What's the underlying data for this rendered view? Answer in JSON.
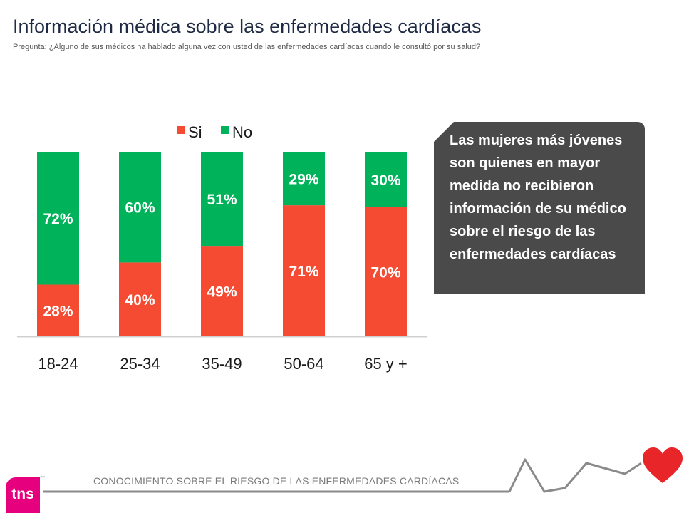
{
  "header": {
    "title": "Información médica sobre las enfermedades cardíacas",
    "subtitle": "Pregunta: ¿Alguno de sus médicos ha hablado alguna vez con usted de las enfermedades cardíacas cuando le consultó por su salud?"
  },
  "chart_data": {
    "type": "bar",
    "stacked": true,
    "categories": [
      "18-24",
      "25-34",
      "35-49",
      "50-64",
      "65 y +"
    ],
    "series": [
      {
        "name": "Si",
        "color": "#f44b32",
        "values": [
          28,
          40,
          49,
          71,
          70
        ],
        "labels": [
          "28%",
          "40%",
          "49%",
          "71%",
          "70%"
        ]
      },
      {
        "name": "No",
        "color": "#00b35a",
        "values": [
          72,
          60,
          51,
          29,
          30
        ],
        "labels": [
          "72%",
          "60%",
          "51%",
          "29%",
          "30%"
        ]
      }
    ],
    "ylim": [
      0,
      100
    ],
    "grid": false,
    "legend": "top"
  },
  "callout": {
    "text": "Las mujeres más jóvenes son quienes en mayor medida no recibieron información de su médico sobre el riesgo de las enfermedades cardíacas"
  },
  "footer": {
    "text": "CONOCIMIENTO SOBRE EL RIESGO DE LAS ENFERMEDADES CARDÍACAS",
    "logo": "tns",
    "logo_tm": "™",
    "heart_icon": "heart-icon",
    "heart_color": "#e8262a"
  }
}
